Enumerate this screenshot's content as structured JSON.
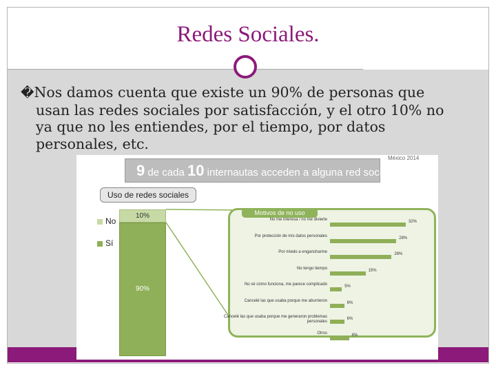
{
  "slide": {
    "title": "Redes Sociales.",
    "bullet_mark": "�",
    "bullet_line1": "Nos damos cuenta que existe un 90% de personas que",
    "bullet_line2": "usan las redes sociales por satisfacción, y el otro 10% no",
    "bullet_line3": "ya que no les entiendes, por el tiempo, por datos",
    "bullet_line4": "personales, etc."
  },
  "infographic": {
    "headline_num1": "9",
    "headline_mid": "de cada",
    "headline_num2": "10",
    "headline_rest": "internautas acceden a alguna red social.",
    "country": "México 2014",
    "usage_title": "Uso de redes sociales",
    "legend": [
      {
        "label": "No",
        "color": "#c7d9a5"
      },
      {
        "label": "Sí",
        "color": "#8faf58"
      }
    ],
    "no_pct": "10%",
    "si_pct": "90%",
    "reasons_title": "Motivos de no uso"
  },
  "chart_data": {
    "type": "bar",
    "categories": [
      "No me interesa / no me divierte",
      "Por protección de mis datos personales",
      "Por miedo a engancharme",
      "No tengo tiempo",
      "No sé cómo funciona, me parece complicado",
      "Cancelé las que usaba porque me aburrieron",
      "Cancelé las que usaba porque me generaron problemas personales",
      "Otros"
    ],
    "values": [
      32,
      28,
      26,
      15,
      5,
      6,
      6,
      8
    ],
    "labels": [
      "32%",
      "28%",
      "26%",
      "15%",
      "5%",
      "6%",
      "6%",
      "8%"
    ],
    "title": "Motivos de no uso"
  }
}
